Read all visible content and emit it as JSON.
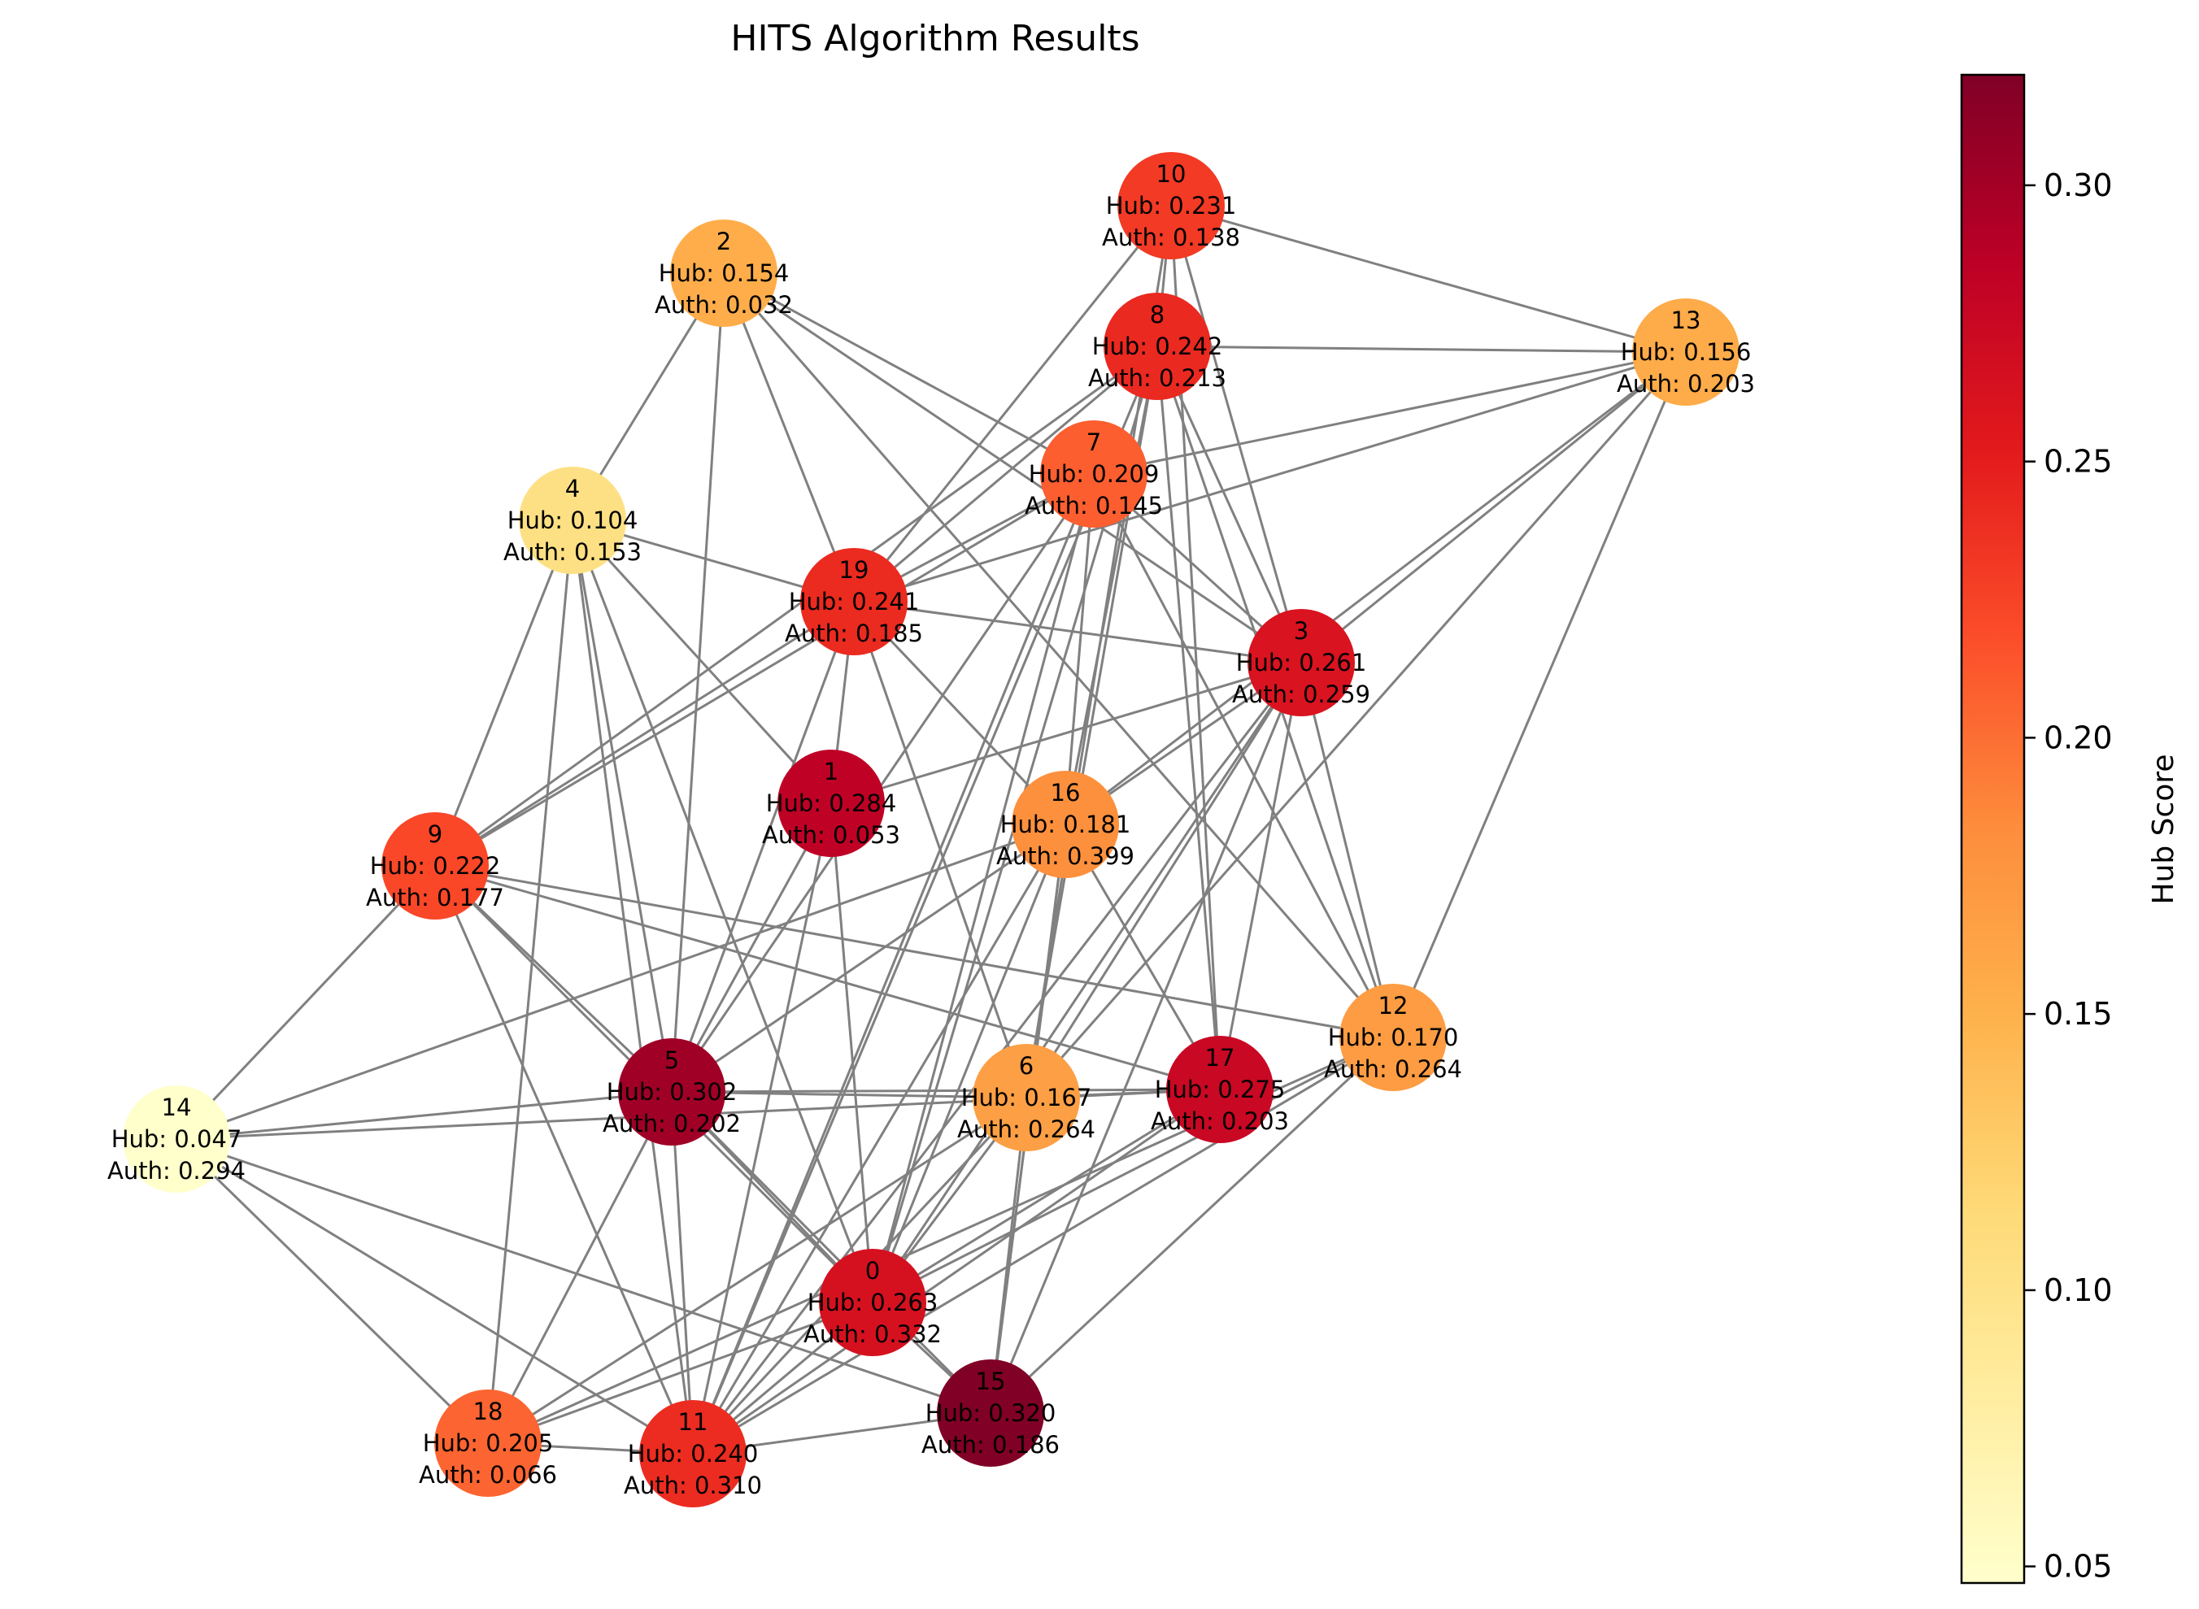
{
  "title": "HITS Algorithm Results",
  "hub_label": "Hub:",
  "auth_label": "Auth:",
  "colorbar": {
    "label": "Hub Score",
    "min": 0.047,
    "max": 0.32,
    "ticks": [
      "0.05",
      "0.10",
      "0.15",
      "0.20",
      "0.25",
      "0.30"
    ],
    "colormap": [
      "#ffffcc",
      "#ffeda0",
      "#fed976",
      "#feb24c",
      "#fd8d3c",
      "#fc4e2a",
      "#e31a1c",
      "#bd0026",
      "#800026"
    ]
  },
  "edge_color": "#808080",
  "nodes": [
    {
      "id": "0",
      "hub": "0.263",
      "auth": "0.332"
    },
    {
      "id": "1",
      "hub": "0.284",
      "auth": "0.053"
    },
    {
      "id": "2",
      "hub": "0.154",
      "auth": "0.032"
    },
    {
      "id": "3",
      "hub": "0.261",
      "auth": "0.259"
    },
    {
      "id": "4",
      "hub": "0.104",
      "auth": "0.153"
    },
    {
      "id": "5",
      "hub": "0.302",
      "auth": "0.202"
    },
    {
      "id": "6",
      "hub": "0.167",
      "auth": "0.264"
    },
    {
      "id": "7",
      "hub": "0.209",
      "auth": "0.145"
    },
    {
      "id": "8",
      "hub": "0.242",
      "auth": "0.213"
    },
    {
      "id": "9",
      "hub": "0.222",
      "auth": "0.177"
    },
    {
      "id": "10",
      "hub": "0.231",
      "auth": "0.138"
    },
    {
      "id": "11",
      "hub": "0.240",
      "auth": "0.310"
    },
    {
      "id": "12",
      "hub": "0.170",
      "auth": "0.264"
    },
    {
      "id": "13",
      "hub": "0.156",
      "auth": "0.203"
    },
    {
      "id": "14",
      "hub": "0.047",
      "auth": "0.294"
    },
    {
      "id": "15",
      "hub": "0.320",
      "auth": "0.186"
    },
    {
      "id": "16",
      "hub": "0.181",
      "auth": "0.399"
    },
    {
      "id": "17",
      "hub": "0.275",
      "auth": "0.203"
    },
    {
      "id": "18",
      "hub": "0.205",
      "auth": "0.066"
    },
    {
      "id": "19",
      "hub": "0.241",
      "auth": "0.185"
    }
  ],
  "edges": [
    [
      "10",
      "8"
    ],
    [
      "10",
      "13"
    ],
    [
      "10",
      "19"
    ],
    [
      "10",
      "3"
    ],
    [
      "10",
      "17"
    ],
    [
      "10",
      "6"
    ],
    [
      "2",
      "4"
    ],
    [
      "2",
      "5"
    ],
    [
      "2",
      "19"
    ],
    [
      "2",
      "7"
    ],
    [
      "2",
      "3"
    ],
    [
      "2",
      "12"
    ],
    [
      "8",
      "13"
    ],
    [
      "8",
      "19"
    ],
    [
      "8",
      "9"
    ],
    [
      "8",
      "3"
    ],
    [
      "8",
      "12"
    ],
    [
      "8",
      "16"
    ],
    [
      "8",
      "17"
    ],
    [
      "8",
      "0"
    ],
    [
      "8",
      "11"
    ],
    [
      "8",
      "6"
    ],
    [
      "13",
      "7"
    ],
    [
      "13",
      "19"
    ],
    [
      "13",
      "3"
    ],
    [
      "13",
      "12"
    ],
    [
      "13",
      "6"
    ],
    [
      "13",
      "16"
    ],
    [
      "7",
      "9"
    ],
    [
      "7",
      "19"
    ],
    [
      "7",
      "16"
    ],
    [
      "7",
      "0"
    ],
    [
      "7",
      "11"
    ],
    [
      "7",
      "12"
    ],
    [
      "7",
      "3"
    ],
    [
      "7",
      "5"
    ],
    [
      "4",
      "1"
    ],
    [
      "4",
      "19"
    ],
    [
      "4",
      "9"
    ],
    [
      "4",
      "5"
    ],
    [
      "4",
      "11"
    ],
    [
      "4",
      "0"
    ],
    [
      "19",
      "3"
    ],
    [
      "19",
      "1"
    ],
    [
      "19",
      "5"
    ],
    [
      "19",
      "6"
    ],
    [
      "19",
      "16"
    ],
    [
      "19",
      "9"
    ],
    [
      "3",
      "16"
    ],
    [
      "3",
      "1"
    ],
    [
      "3",
      "0"
    ],
    [
      "3",
      "15"
    ],
    [
      "3",
      "12"
    ],
    [
      "3",
      "11"
    ],
    [
      "3",
      "6"
    ],
    [
      "3",
      "17"
    ],
    [
      "1",
      "0"
    ],
    [
      "1",
      "11"
    ],
    [
      "1",
      "5"
    ],
    [
      "16",
      "14"
    ],
    [
      "16",
      "5"
    ],
    [
      "16",
      "0"
    ],
    [
      "16",
      "11"
    ],
    [
      "16",
      "15"
    ],
    [
      "16",
      "17"
    ],
    [
      "9",
      "14"
    ],
    [
      "9",
      "5"
    ],
    [
      "9",
      "0"
    ],
    [
      "9",
      "11"
    ],
    [
      "9",
      "12"
    ],
    [
      "9",
      "17"
    ],
    [
      "12",
      "0"
    ],
    [
      "12",
      "15"
    ],
    [
      "12",
      "11"
    ],
    [
      "12",
      "18"
    ],
    [
      "5",
      "6"
    ],
    [
      "5",
      "17"
    ],
    [
      "5",
      "14"
    ],
    [
      "5",
      "0"
    ],
    [
      "5",
      "15"
    ],
    [
      "5",
      "11"
    ],
    [
      "5",
      "18"
    ],
    [
      "6",
      "17"
    ],
    [
      "6",
      "11"
    ],
    [
      "6",
      "0"
    ],
    [
      "6",
      "15"
    ],
    [
      "6",
      "18"
    ],
    [
      "17",
      "0"
    ],
    [
      "17",
      "11"
    ],
    [
      "17",
      "14"
    ],
    [
      "14",
      "11"
    ],
    [
      "14",
      "18"
    ],
    [
      "14",
      "15"
    ],
    [
      "0",
      "15"
    ],
    [
      "0",
      "18"
    ],
    [
      "0",
      "11"
    ],
    [
      "18",
      "11"
    ],
    [
      "18",
      "4"
    ],
    [
      "15",
      "11"
    ],
    [
      "15",
      "16"
    ]
  ]
}
